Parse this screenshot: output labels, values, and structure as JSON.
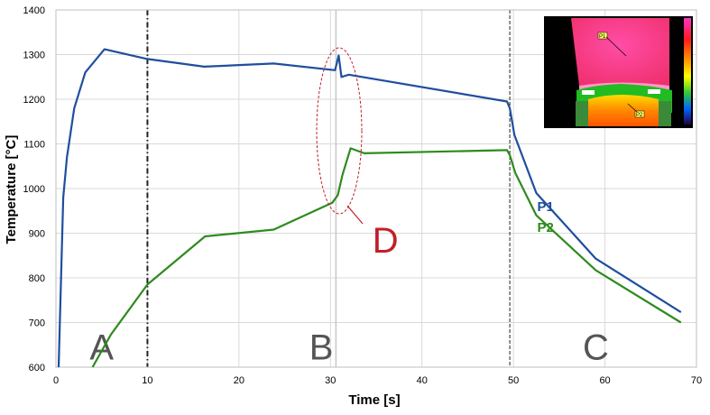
{
  "chart_data": {
    "type": "line",
    "xlabel": "Time [s]",
    "ylabel": "Temperature [°C]",
    "xlim": [
      0,
      70
    ],
    "ylim": [
      600,
      1400
    ],
    "xticks": [
      0,
      10,
      20,
      30,
      40,
      50,
      60,
      70
    ],
    "yticks": [
      600,
      700,
      800,
      900,
      1000,
      1100,
      1200,
      1300,
      1400
    ],
    "grid": true,
    "series": [
      {
        "name": "P1",
        "color": "#1f4e9e",
        "points": [
          [
            0.3,
            600
          ],
          [
            0.8,
            980
          ],
          [
            1.2,
            1070
          ],
          [
            2,
            1180
          ],
          [
            3.2,
            1260
          ],
          [
            5.3,
            1312
          ],
          [
            10,
            1290
          ],
          [
            16.2,
            1273
          ],
          [
            23.8,
            1280
          ],
          [
            30.5,
            1265
          ],
          [
            30.9,
            1298
          ],
          [
            31.2,
            1250
          ],
          [
            32,
            1255
          ],
          [
            49.3,
            1195
          ],
          [
            49.6,
            1180
          ],
          [
            50.1,
            1120
          ],
          [
            52.5,
            990
          ],
          [
            59,
            843
          ],
          [
            68.3,
            723
          ]
        ]
      },
      {
        "name": "P2",
        "color": "#2e8b1e",
        "points": [
          [
            4,
            600
          ],
          [
            6,
            673
          ],
          [
            10,
            785
          ],
          [
            16.3,
            893
          ],
          [
            23.8,
            908
          ],
          [
            30.2,
            968
          ],
          [
            30.8,
            985
          ],
          [
            31.3,
            1030
          ],
          [
            32.2,
            1090
          ],
          [
            33.7,
            1079
          ],
          [
            49.3,
            1086
          ],
          [
            49.6,
            1075
          ],
          [
            50.2,
            1035
          ],
          [
            52.5,
            940
          ],
          [
            59,
            817
          ],
          [
            68.3,
            700
          ]
        ]
      }
    ],
    "vlines": [
      {
        "x": 10,
        "style": "dash-dot"
      },
      {
        "x": 30.6,
        "style": "solid-light"
      },
      {
        "x": 49.6,
        "style": "dash"
      }
    ],
    "regions": [
      {
        "label": "A",
        "x": 5,
        "y": 645
      },
      {
        "label": "B",
        "x": 29,
        "y": 645
      },
      {
        "label": "C",
        "x": 59,
        "y": 645
      }
    ],
    "annotations": [
      {
        "label": "D",
        "x": 36,
        "y": 885,
        "color": "#c0202a"
      }
    ],
    "series_labels": [
      {
        "text": "P1",
        "x": 53.5,
        "y": 950,
        "color": "#1f4e9e"
      },
      {
        "text": "P2",
        "x": 53.5,
        "y": 903,
        "color": "#2e8b1e"
      }
    ],
    "inset": {
      "markers": [
        "P1",
        "P2"
      ]
    }
  }
}
